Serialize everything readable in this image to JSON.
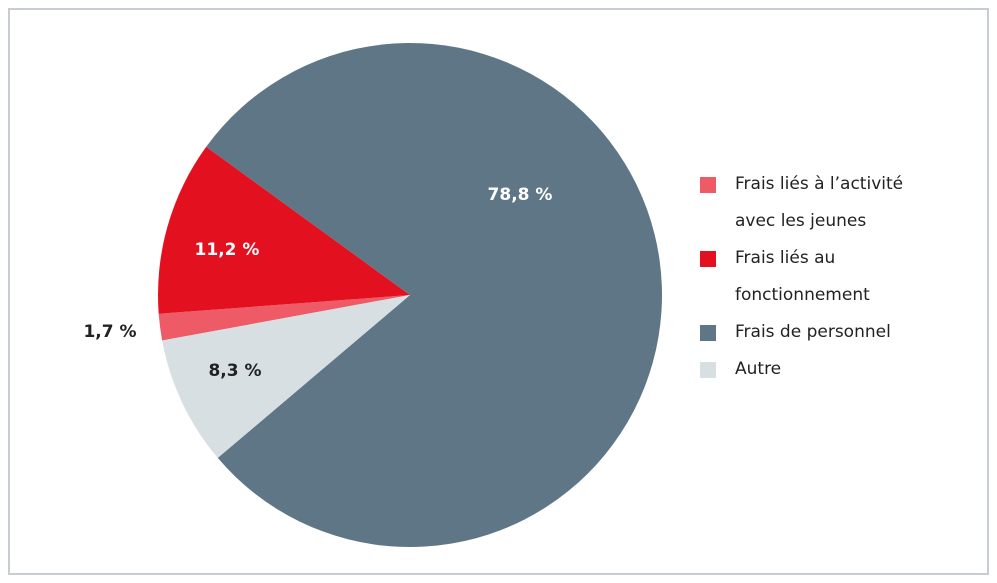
{
  "chart_data": {
    "type": "pie",
    "categories": [
      "Frais liés à l’activité avec les jeunes",
      "Frais liés au fonctionnement",
      "Frais de personnel",
      "Autre"
    ],
    "values": [
      1.7,
      11.2,
      78.8,
      8.3
    ],
    "value_labels": [
      "1,7 %",
      "11,2 %",
      "78,8 %",
      "8,3 %"
    ],
    "colors": [
      "#ee5a65",
      "#e3101f",
      "#5f7686",
      "#d7dfe3"
    ]
  }
}
